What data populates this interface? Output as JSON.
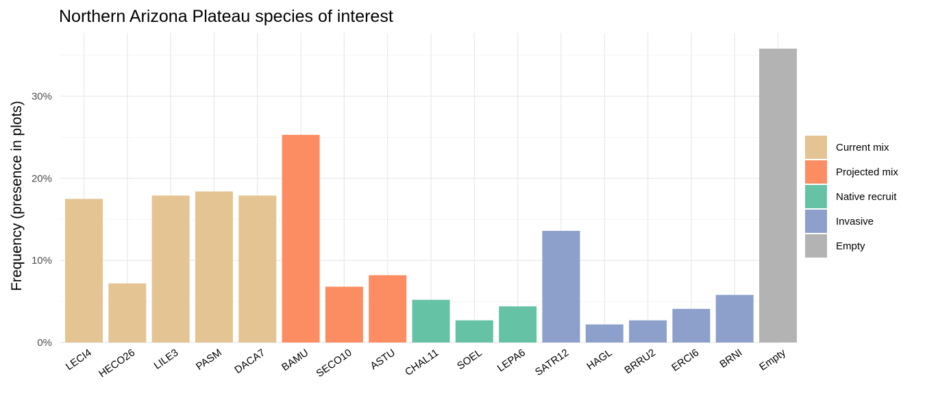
{
  "chart_data": {
    "type": "bar",
    "title": "Northern Arizona Plateau species of interest",
    "xlabel": "",
    "ylabel": "Frequency (presence in plots)",
    "ylim": [
      0,
      36
    ],
    "yticks": [
      0,
      10,
      20,
      30
    ],
    "ytick_labels": [
      "0%",
      "10%",
      "20%",
      "30%"
    ],
    "grid": true,
    "legend_position": "right",
    "categories": [
      "LECI4",
      "HECO26",
      "LILE3",
      "PASM",
      "DACA7",
      "BAMU",
      "SECO10",
      "ASTU",
      "CHAL11",
      "SOEL",
      "LEPA6",
      "SATR12",
      "HAGL",
      "BRRU2",
      "ERCI6",
      "BRNI",
      "Empty"
    ],
    "values": [
      17.5,
      7.2,
      17.9,
      18.4,
      17.9,
      25.3,
      6.8,
      8.2,
      5.2,
      2.7,
      4.4,
      13.6,
      2.2,
      2.7,
      4.1,
      5.8,
      35.8
    ],
    "groups": [
      "Current mix",
      "Current mix",
      "Current mix",
      "Current mix",
      "Current mix",
      "Projected mix",
      "Projected mix",
      "Projected mix",
      "Native recruit",
      "Native recruit",
      "Native recruit",
      "Invasive",
      "Invasive",
      "Invasive",
      "Invasive",
      "Invasive",
      "Empty"
    ],
    "legend": [
      {
        "name": "Current mix",
        "color": "#E5C494"
      },
      {
        "name": "Projected mix",
        "color": "#FC8D62"
      },
      {
        "name": "Native recruit",
        "color": "#66C2A5"
      },
      {
        "name": "Invasive",
        "color": "#8DA0CB"
      },
      {
        "name": "Empty",
        "color": "#B3B3B3"
      }
    ]
  }
}
